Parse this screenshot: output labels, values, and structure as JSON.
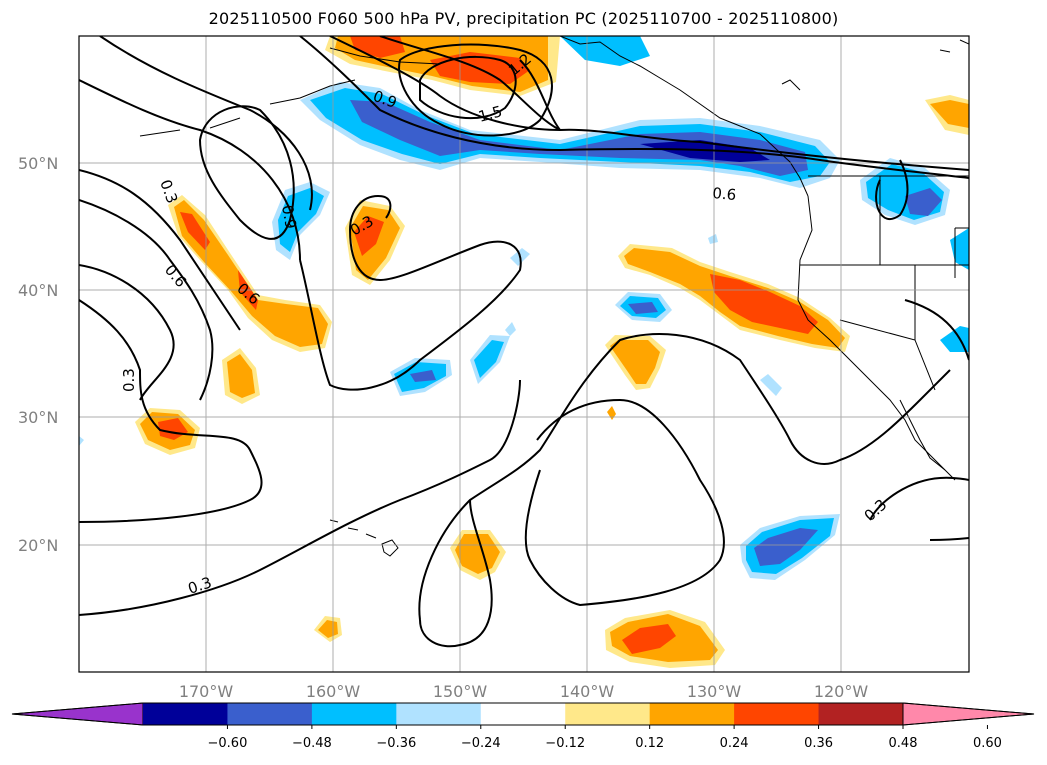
{
  "title": "2025110500 F060 500 hPa PV, precipitation PC (2025110700 - 2025110800)",
  "map": {
    "lat_labels": [
      "50°N",
      "40°N",
      "30°N",
      "20°N"
    ],
    "lon_labels": [
      "170°W",
      "160°W",
      "150°W",
      "140°W",
      "130°W",
      "120°W"
    ],
    "contour_labels": [
      "0.9",
      "1.2",
      "1.5",
      "0.6",
      "0.3",
      "0.6",
      "0.9",
      "0.3",
      "0.6",
      "0.3",
      "0.3",
      "0.3"
    ]
  },
  "colorbar": {
    "tick_labels": [
      "−0.60",
      "−0.48",
      "−0.36",
      "−0.24",
      "−0.12",
      "0.12",
      "0.24",
      "0.36",
      "0.48",
      "0.60"
    ],
    "colors": [
      "#9933cc",
      "#000099",
      "#3a5fcd",
      "#00bfff",
      "#b0e2ff",
      "#ffffff",
      "#ffe88a",
      "#ffa500",
      "#ff4500",
      "#b22222",
      "#ff88aa"
    ]
  },
  "legend_colors": {
    "neg_light": "#b0e2ff",
    "neg_mid": "#00bfff",
    "neg_strong": "#3a5fcd",
    "neg_extreme": "#000099",
    "pos_light": "#ffe88a",
    "pos_mid": "#ffa500",
    "pos_strong": "#ff4500"
  }
}
